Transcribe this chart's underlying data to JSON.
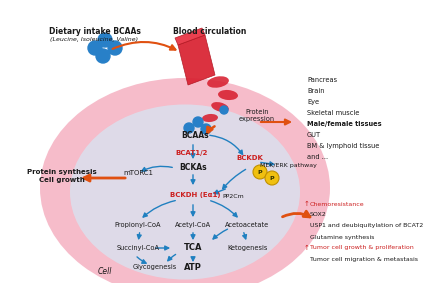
{
  "bg_color": "#ffffff",
  "arrow_orange": "#e05010",
  "arrow_blue": "#2080c0",
  "text_dark": "#1a1a1a",
  "text_red": "#cc2020",
  "blue_dot_color": "#2880c8",
  "right_list_top": [
    "Pancreas",
    "Brain",
    "Eye",
    "Skeletal muscle",
    "Male/female tissues",
    "GUT",
    "BM & lymphoid tissue",
    "and ..."
  ],
  "right_list_top_bold": [
    false,
    false,
    false,
    false,
    true,
    false,
    false,
    false
  ],
  "right_list_bottom": [
    "Chemoresistance",
    "SOX2",
    "USP1 and deubiquitylation of BCAT2",
    "Glutamine synthesis",
    "Tumor cell growth & proliferation",
    "Tumor cell migration & metastasis"
  ],
  "right_list_bottom_red": [
    true,
    false,
    false,
    false,
    true,
    false
  ]
}
